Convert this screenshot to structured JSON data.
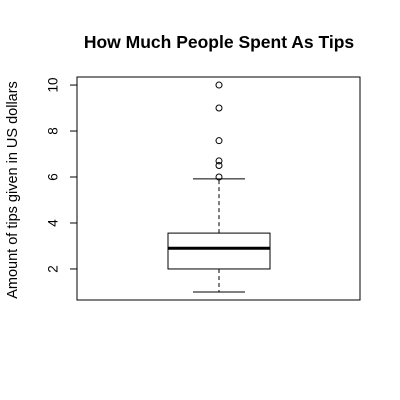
{
  "chart_data": {
    "type": "boxplot",
    "title": "How Much People Spent As Tips",
    "xlabel": "",
    "ylabel": "Amount of tips given in US dollars",
    "ylim": [
      0.65,
      10.35
    ],
    "yticks": [
      2,
      4,
      6,
      8,
      10
    ],
    "box": {
      "whisker_low": 1.0,
      "q1": 2.0,
      "median": 2.9,
      "q3": 3.56,
      "whisker_high": 5.92
    },
    "outliers": [
      6.0,
      6.5,
      6.7,
      7.58,
      9.0,
      10.0
    ]
  },
  "colors": {
    "axis": "#000000",
    "box_fill": "#ffffff",
    "median": "#000000"
  }
}
